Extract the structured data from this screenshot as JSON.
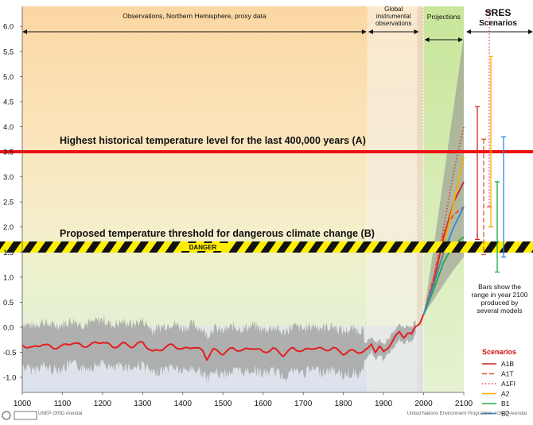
{
  "chart_data": {
    "type": "line",
    "xlim": [
      1000,
      2100
    ],
    "ylim": [
      -1.3,
      6.4
    ],
    "x_ticks": [
      "1000",
      "1100",
      "1200",
      "1300",
      "1400",
      "1500",
      "1600",
      "1700",
      "1800",
      "1900",
      "2000",
      "2100"
    ],
    "y_ticks": [
      "6.0",
      "5.5",
      "5.0",
      "4.5",
      "4.0",
      "3.5",
      "3.0",
      "2.5",
      "2.0",
      "1.5",
      "1.0",
      "0.5",
      "0.0",
      "-0.5",
      "-1.0"
    ],
    "periods": [
      {
        "label": "Observations, Northern Hemisphere, proxy data",
        "x_range": [
          1000,
          1860
        ]
      },
      {
        "label": "Global instrumental observations",
        "x_range": [
          1860,
          1990
        ]
      },
      {
        "label": "Projections",
        "x_range": [
          2000,
          2100
        ]
      }
    ],
    "scenarios_header": "SRES\nScenarios",
    "thresholds": [
      {
        "label": "Highest historical temperature level for the last 400,000 years (A)",
        "y": 3.5,
        "color": "#ee1111"
      },
      {
        "label": "Proposed temperature threshold for dangerous climate change (B)",
        "y": 1.6,
        "band_label": "DANGER"
      }
    ],
    "history": {
      "x": [
        1000,
        1025,
        1050,
        1075,
        1100,
        1125,
        1150,
        1175,
        1200,
        1225,
        1250,
        1275,
        1300,
        1325,
        1350,
        1375,
        1400,
        1425,
        1450,
        1460,
        1475,
        1500,
        1525,
        1550,
        1575,
        1600,
        1625,
        1650,
        1675,
        1700,
        1725,
        1750,
        1775,
        1800,
        1825,
        1850,
        1860,
        1870,
        1880,
        1890,
        1900,
        1910,
        1920,
        1930,
        1940,
        1950,
        1960,
        1970,
        1980,
        1990,
        2000
      ],
      "y": [
        -0.35,
        -0.42,
        -0.33,
        -0.41,
        -0.38,
        -0.3,
        -0.38,
        -0.34,
        -0.28,
        -0.4,
        -0.33,
        -0.38,
        -0.3,
        -0.5,
        -0.42,
        -0.35,
        -0.45,
        -0.38,
        -0.48,
        -0.62,
        -0.45,
        -0.52,
        -0.42,
        -0.47,
        -0.4,
        -0.5,
        -0.43,
        -0.55,
        -0.42,
        -0.48,
        -0.4,
        -0.45,
        -0.42,
        -0.52,
        -0.47,
        -0.5,
        -0.45,
        -0.32,
        -0.48,
        -0.4,
        -0.5,
        -0.4,
        -0.3,
        -0.2,
        -0.1,
        -0.18,
        -0.12,
        -0.16,
        0.02,
        0.1,
        0.25
      ],
      "uncertainty_half_width": 0.5
    },
    "projection_envelope": {
      "x": [
        2000,
        2025,
        2050,
        2075,
        2100
      ],
      "lower": [
        0.25,
        0.55,
        0.85,
        1.15,
        1.4
      ],
      "upper": [
        0.25,
        1.6,
        3.0,
        4.4,
        5.8
      ]
    },
    "series": [
      {
        "name": "A1B",
        "color": "#cc2222",
        "dash": "none",
        "x": [
          2000,
          2025,
          2050,
          2075,
          2100
        ],
        "y": [
          0.25,
          0.9,
          1.8,
          2.5,
          2.9
        ],
        "range_2100": [
          1.75,
          4.4
        ]
      },
      {
        "name": "A1T",
        "color": "#dd5533",
        "dash": "6,3",
        "x": [
          2000,
          2025,
          2050,
          2075,
          2100
        ],
        "y": [
          0.25,
          1.0,
          1.9,
          2.25,
          2.4
        ],
        "range_2100": [
          1.45,
          3.75
        ]
      },
      {
        "name": "A1FI",
        "color": "#dd4444",
        "dash": "1.5,2.5",
        "x": [
          2000,
          2025,
          2050,
          2075,
          2100
        ],
        "y": [
          0.25,
          1.0,
          2.0,
          3.1,
          4.0
        ],
        "range_2100": [
          2.4,
          6.3
        ]
      },
      {
        "name": "A2",
        "color": "#ffaa00",
        "dash": "none",
        "x": [
          2000,
          2025,
          2050,
          2075,
          2100
        ],
        "y": [
          0.25,
          0.8,
          1.6,
          2.5,
          3.4
        ],
        "range_2100": [
          2.0,
          5.4
        ]
      },
      {
        "name": "B1",
        "color": "#22aa44",
        "dash": "none",
        "x": [
          2000,
          2025,
          2050,
          2075,
          2100
        ],
        "y": [
          0.25,
          0.75,
          1.3,
          1.65,
          1.8
        ],
        "range_2100": [
          1.1,
          2.9
        ]
      },
      {
        "name": "B2",
        "color": "#3388dd",
        "dash": "none",
        "x": [
          2000,
          2025,
          2050,
          2075,
          2100
        ],
        "y": [
          0.25,
          0.85,
          1.5,
          2.0,
          2.4
        ],
        "range_2100": [
          1.4,
          3.8
        ]
      }
    ],
    "bars_note": [
      "Bars show the",
      "range in year 2100",
      "produced by",
      "several models"
    ],
    "legend_title": "Scenarios",
    "grid": false,
    "legend_position": "right"
  },
  "footer": {
    "left_logos": "UNEP  GRID Arendal",
    "credit": "United Nations Environment Programme / GRID-Arendal"
  },
  "colors": {
    "proxy_bg_top": "#fbd9a6",
    "green_bg": "#e9f3cf",
    "bottom_bg": "#dcdff0",
    "projection_bg": "#d3e9a5",
    "danger_yellow": "#ffee00"
  }
}
